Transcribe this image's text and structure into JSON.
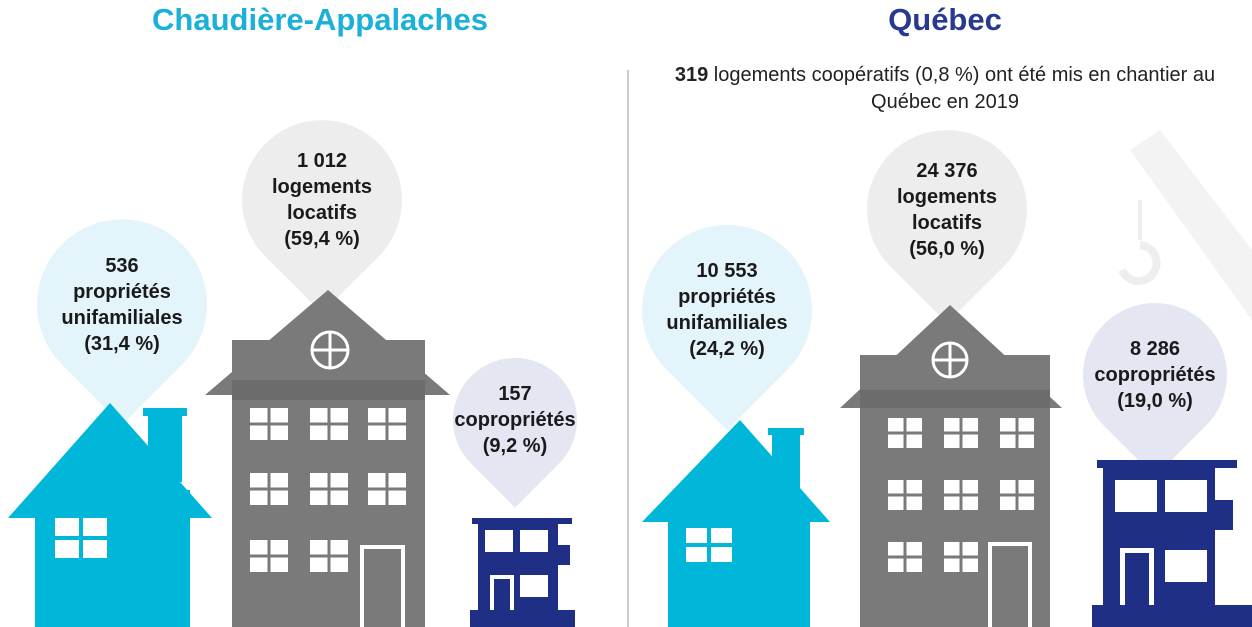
{
  "panels": [
    {
      "title": "Chaudière-Appalaches",
      "items": [
        {
          "number": "536",
          "label": "propriétés unifamiliales",
          "percent": "(31,4 %)"
        },
        {
          "number": "1 012",
          "label": "logements locatifs",
          "percent": "(59,4 %)"
        },
        {
          "number": "157",
          "label": "copropriétés",
          "percent": "(9,2 %)"
        }
      ]
    },
    {
      "title": "Québec",
      "note": {
        "bold": "319",
        "text": "logements coopératifs (0,8 %) ont été mis en chantier au Québec en 2019"
      },
      "items": [
        {
          "number": "10 553",
          "label": "propriétés unifamiliales",
          "percent": "(24,2 %)"
        },
        {
          "number": "24 376",
          "label": "logements locatifs",
          "percent": "(56,0 %)"
        },
        {
          "number": "8 286",
          "label": "copropriétés",
          "percent": "(19,0 %)"
        }
      ]
    }
  ]
}
